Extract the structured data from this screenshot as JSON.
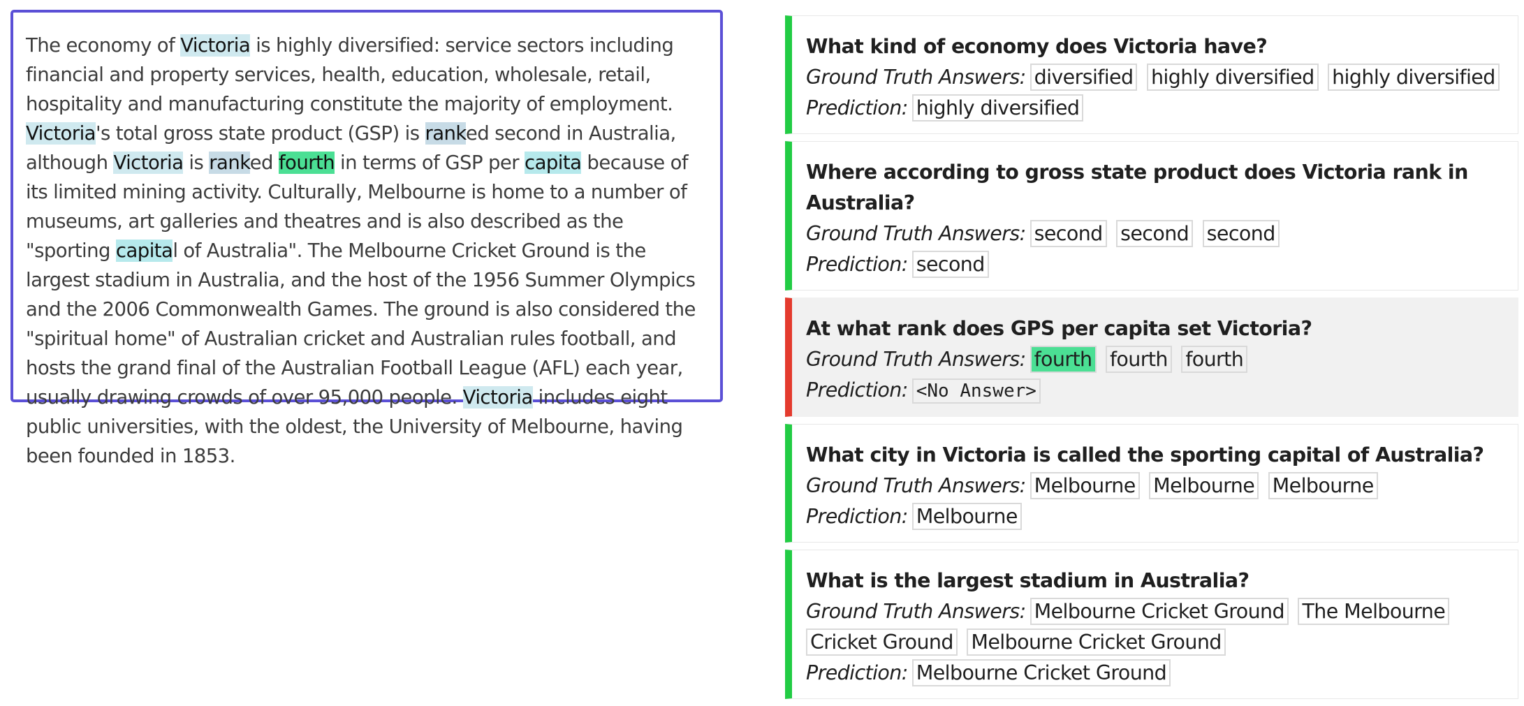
{
  "passage": {
    "segments": [
      {
        "text": "The economy of "
      },
      {
        "text": "Victoria",
        "hl": "q"
      },
      {
        "text": " is highly diversified: service sectors including financial and property services, health, education, wholesale, retail, hospitality and manufacturing constitute the majority of employment. "
      },
      {
        "text": "Victoria",
        "hl": "q"
      },
      {
        "text": "'s total gross state product (GSP) is "
      },
      {
        "text": "rank",
        "hl": "r"
      },
      {
        "text": "ed second in Australia, although "
      },
      {
        "text": "Victoria",
        "hl": "q"
      },
      {
        "text": " is "
      },
      {
        "text": "rank",
        "hl": "r"
      },
      {
        "text": "ed "
      },
      {
        "text": "fourth",
        "hl": "a"
      },
      {
        "text": " in terms of GSP per "
      },
      {
        "text": "capita",
        "hl": "c"
      },
      {
        "text": " because of its limited mining activity. Culturally, Melbourne is home to a number of museums, art galleries and theatres and is also described as the \"sporting "
      },
      {
        "text": "capita",
        "hl": "c"
      },
      {
        "text": "l of Australia\". The Melbourne Cricket Ground is the largest stadium in Australia, and the host of the 1956 Summer Olympics and the 2006 Commonwealth Games. The ground is also considered the \"spiritual home\" of Australian cricket and Australian rules football, and hosts the grand final of the Australian Football League (AFL) each year, usually drawing crowds of over 95,000 people. "
      },
      {
        "text": "Victoria",
        "hl": "q"
      },
      {
        "text": " includes eight public universities, with the oldest, the University of Melbourne, having been founded in 1853."
      }
    ]
  },
  "labels": {
    "ground_truth": "Ground Truth Answers:",
    "prediction": "Prediction:"
  },
  "questions": [
    {
      "question": "What kind of economy does Victoria have?",
      "status": "correct",
      "ground_truth": [
        {
          "text": "diversified"
        },
        {
          "text": "highly diversified"
        },
        {
          "text": "highly diversified"
        }
      ],
      "prediction": {
        "text": "highly diversified",
        "mono": false
      }
    },
    {
      "question": "Where according to gross state product does Victoria rank in Australia?",
      "status": "correct",
      "ground_truth": [
        {
          "text": "second"
        },
        {
          "text": "second"
        },
        {
          "text": "second"
        }
      ],
      "prediction": {
        "text": "second",
        "mono": false
      }
    },
    {
      "question": "At what rank does GPS per capita set Victoria?",
      "status": "incorrect",
      "ground_truth": [
        {
          "text": "fourth",
          "highlight": true
        },
        {
          "text": "fourth"
        },
        {
          "text": "fourth"
        }
      ],
      "prediction": {
        "text": "<No Answer>",
        "mono": true
      }
    },
    {
      "question": "What city in Victoria is called the sporting capital of Australia?",
      "status": "correct",
      "ground_truth": [
        {
          "text": "Melbourne"
        },
        {
          "text": "Melbourne"
        },
        {
          "text": "Melbourne"
        }
      ],
      "prediction": {
        "text": "Melbourne",
        "mono": false
      }
    },
    {
      "question": "What is the largest stadium in Australia?",
      "status": "correct",
      "ground_truth": [
        {
          "text": "Melbourne Cricket Ground"
        },
        {
          "text": "The Melbourne Cricket Ground"
        },
        {
          "text": "Melbourne Cricket Ground"
        }
      ],
      "prediction": {
        "text": "Melbourne Cricket Ground",
        "mono": false
      }
    }
  ],
  "colors": {
    "passage_border": "#5b50d6",
    "correct_bar": "#22cc44",
    "incorrect_bar": "#e43b2e",
    "answer_highlight": "#4bdf94",
    "question_highlight": "#cfe9ef",
    "rank_highlight": "#c7dbe6",
    "capita_highlight": "#b6e9ec"
  }
}
